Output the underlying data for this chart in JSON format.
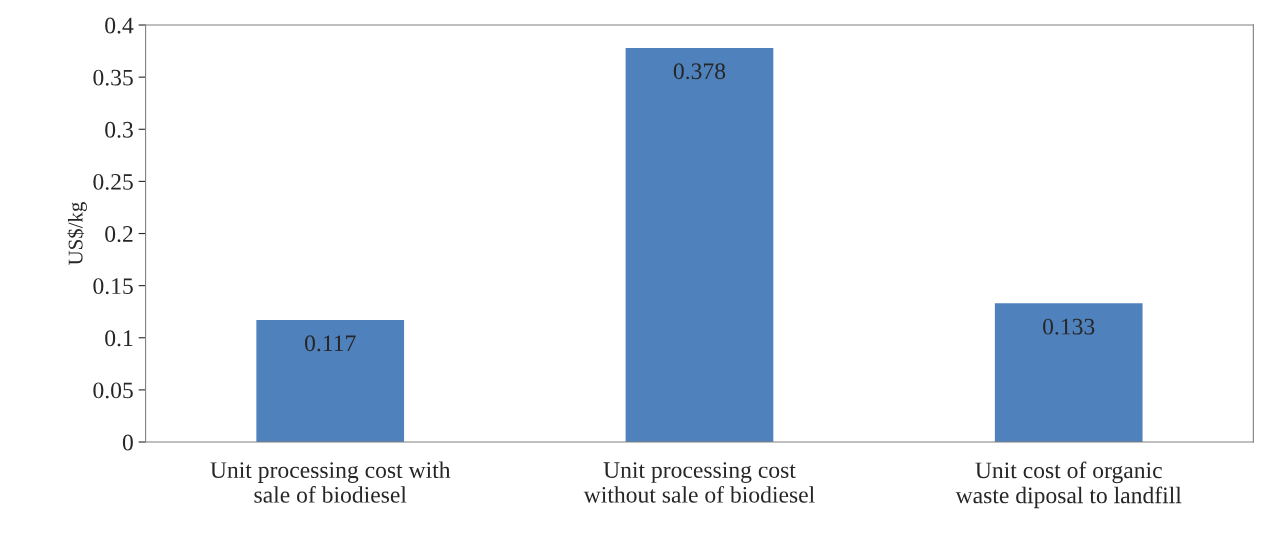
{
  "chart_data": {
    "type": "bar",
    "ylabel": "US$/kg",
    "categories": [
      "Unit processing cost with\nsale of biodiesel",
      "Unit processing cost\nwithout sale of biodiesel",
      "Unit cost of organic\nwaste diposal to landfill"
    ],
    "values": [
      0.117,
      0.378,
      0.133
    ],
    "color": "#4f81bd",
    "ylim": [
      0,
      0.4
    ],
    "yticks": [
      0,
      0.05,
      0.1,
      0.15,
      0.2,
      0.25,
      0.3,
      0.35,
      0.4
    ],
    "data_labels": true,
    "grid": false
  }
}
